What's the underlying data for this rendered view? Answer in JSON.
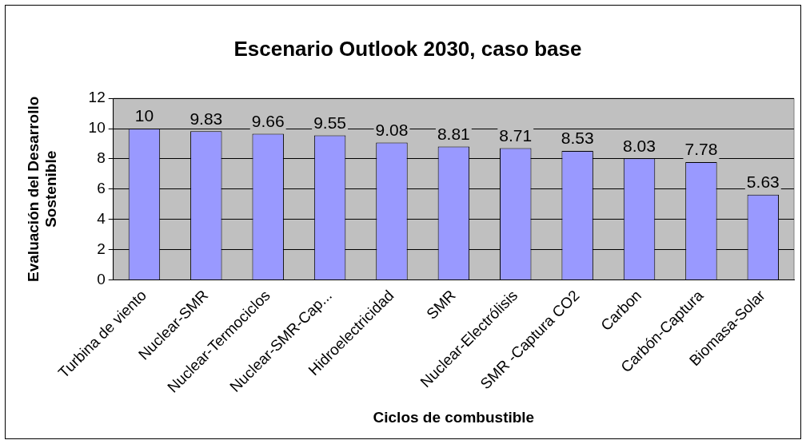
{
  "chart_data": {
    "type": "bar",
    "title": "Escenario Outlook 2030, caso base",
    "xlabel": "Ciclos de combustible",
    "ylabel": "Evaluación del Desarrollo Sostenible",
    "categories": [
      "Turbina de viento",
      "Nuclear-SMR",
      "Nuclear-Termociclos",
      "Nuclear-SMR-Cap...",
      "Hidroelectricidad",
      "SMR",
      "Nuclear-Electrólisis",
      "SMR -Captura CO2",
      "Carbon",
      "Carbón-Captura",
      "Biomasa-Solar"
    ],
    "values": [
      10,
      9.83,
      9.66,
      9.55,
      9.08,
      8.81,
      8.71,
      8.53,
      8.03,
      7.78,
      5.63
    ],
    "color": "#9999ff",
    "ylim": [
      0,
      12
    ],
    "yticks": [
      0,
      2,
      4,
      6,
      8,
      10,
      12
    ],
    "grid": "y",
    "data_labels": true
  }
}
